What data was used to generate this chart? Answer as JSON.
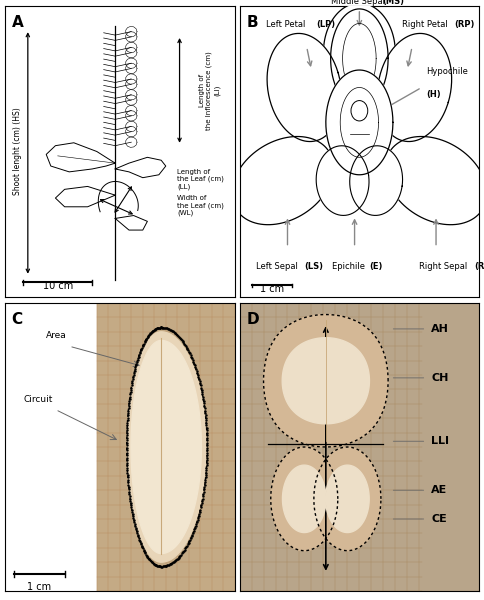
{
  "panel_labels": [
    "A",
    "B",
    "C",
    "D"
  ],
  "panel_A": {
    "shoot_length_label": "Shoot lenght (cm) (HS)",
    "inflorescence_label": "Length of\nthe Inflorescence (cm)\n(LI)",
    "leaf_length_label": "Length of\nthe Leaf (cm)\n(LL)",
    "leaf_width_label": "Width of\nthe Leaf (cm)\n(WL)",
    "scale_bar": "10 cm"
  },
  "panel_B": {
    "middle_sepal": "Middle Sepal ",
    "middle_sepal_bold": "(MS)",
    "left_petal": "Left Petal ",
    "left_petal_bold": "(LP)",
    "right_petal": "Right Petal ",
    "right_petal_bold": "(RP)",
    "hypochile": "Hypochile\n",
    "hypochile_bold": "(H)",
    "epichile": "Epichile ",
    "epichile_bold": "(E)",
    "left_sepal": "Left Sepal ",
    "left_sepal_bold": "(LS)",
    "right_sepal": "Right Sepal  ",
    "right_sepal_bold": "(RS)",
    "scale_bar": "1 cm"
  },
  "panel_C": {
    "area": "Area",
    "circuit": "Circuit",
    "scale_bar": "1 cm"
  },
  "panel_D": {
    "AH": "AH",
    "CH": "CH",
    "LLI": "LLI",
    "AE": "AE",
    "CE": "CE"
  },
  "bg_white": "#ffffff",
  "bg_photo": "#c8b89a",
  "grid_color": "#c8956a",
  "leaf_fill": "#e8d5b8",
  "leaf_inner": "#f0e5d0",
  "arrow_gray": "#888888",
  "black": "#000000"
}
